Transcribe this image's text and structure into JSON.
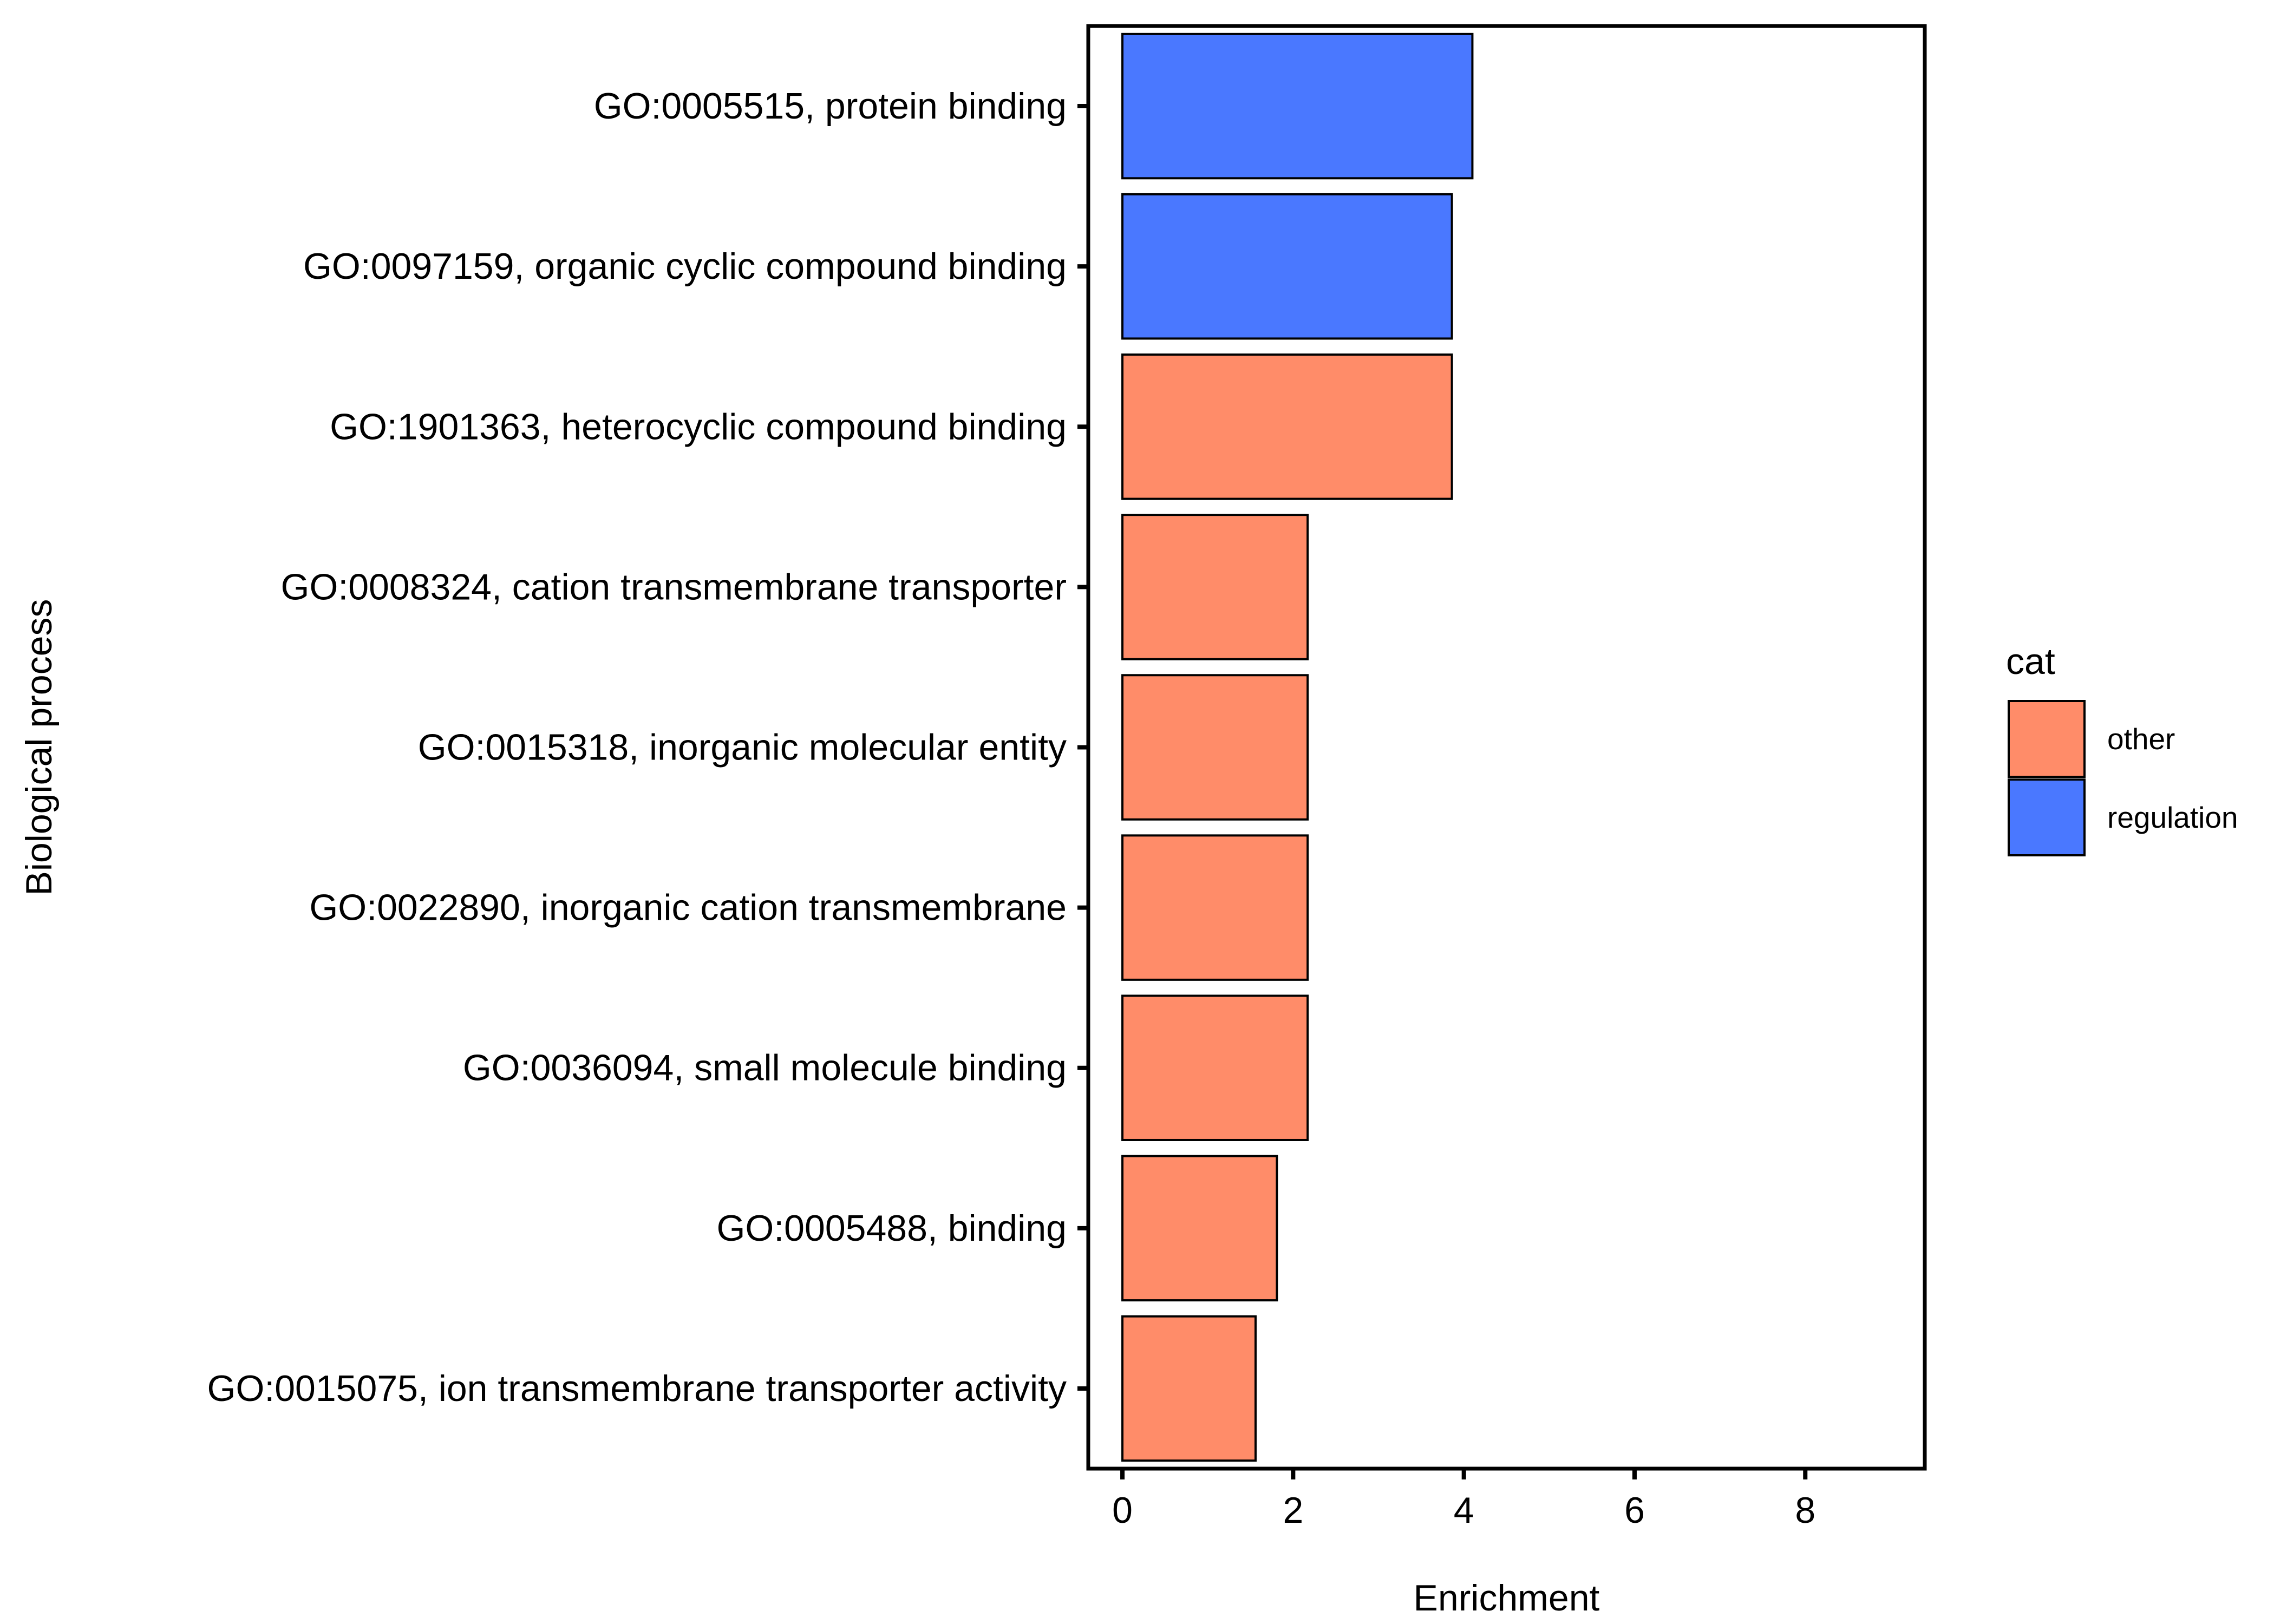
{
  "chart_data": {
    "type": "bar",
    "orientation": "horizontal",
    "title": "",
    "xlabel": "Enrichment",
    "ylabel": "Biological process",
    "xlim": [
      -0.4,
      9.4
    ],
    "xticks": [
      0,
      2,
      4,
      6,
      8
    ],
    "grid": false,
    "legend_position": "right",
    "legend": {
      "title": "cat",
      "entries": [
        {
          "label": "other",
          "color": "#FF8C69"
        },
        {
          "label": "regulation",
          "color": "#4A78FF"
        }
      ]
    },
    "categories": [
      "GO:0005515, protein binding",
      "GO:0097159, organic cyclic compound binding",
      "GO:1901363, heterocyclic compound binding",
      "GO:0008324, cation transmembrane transporter ",
      "GO:0015318, inorganic molecular entity ",
      "GO:0022890, inorganic cation transmembrane ",
      "GO:0036094, small molecule binding",
      "GO:0005488, binding",
      "GO:0015075, ion transmembrane transporter activity"
    ],
    "values": [
      4.1,
      3.86,
      3.86,
      2.17,
      2.17,
      2.17,
      2.17,
      1.81,
      1.56
    ],
    "cat": [
      "regulation",
      "regulation",
      "other",
      "other",
      "other",
      "other",
      "other",
      "other",
      "other"
    ]
  }
}
